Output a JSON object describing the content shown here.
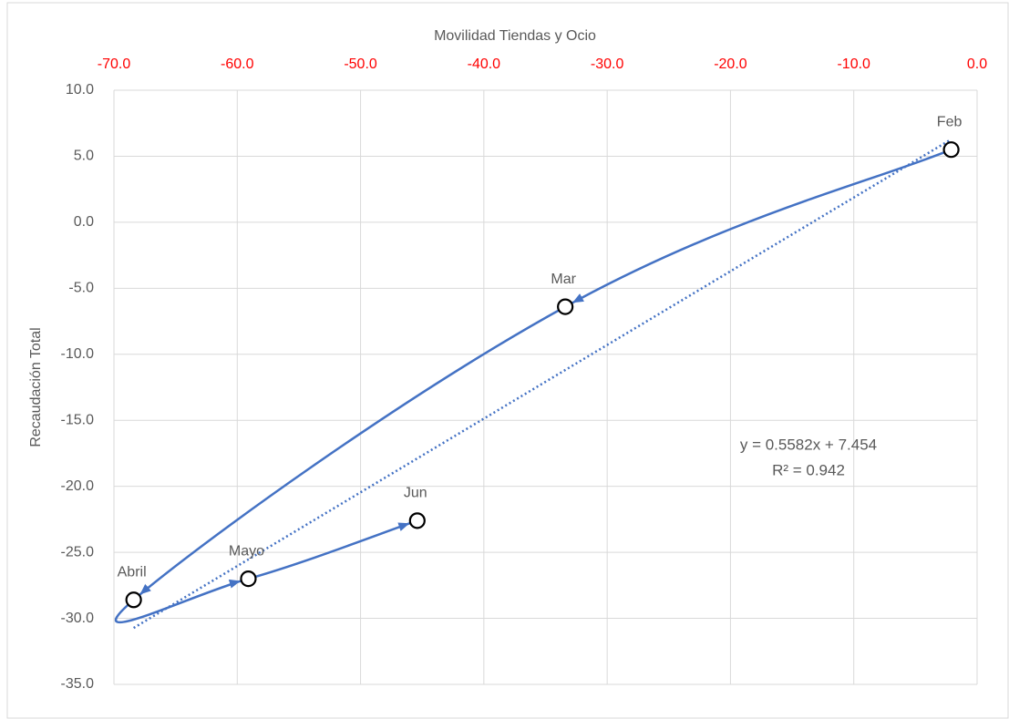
{
  "chart_data": {
    "type": "scatter",
    "x_label": "Movilidad Tiendas y Ocio",
    "y_label": "Recaudación Total",
    "series": [
      {
        "color": "#4472c4",
        "point_labels": [
          "Feb",
          "Mar",
          "Abril",
          "Mayo",
          "Jun"
        ],
        "x": [
          -2.1,
          -33.4,
          -68.4,
          -59.1,
          -45.4
        ],
        "values": [
          5.5,
          -6.4,
          -28.6,
          -27.0,
          -22.6
        ]
      }
    ],
    "trendline": {
      "slope": 0.5582,
      "intercept": 7.454,
      "color": "#4472c4",
      "equation": "y = 0.5582x + 7.454",
      "r2": "R² = 0.942"
    },
    "xlim": [
      -70,
      0
    ],
    "xticks": [
      {
        "value": -70,
        "label": "-70.0"
      },
      {
        "value": -60,
        "label": "-60.0"
      },
      {
        "value": -50,
        "label": "-50.0"
      },
      {
        "value": -40,
        "label": "-40.0"
      },
      {
        "value": -30,
        "label": "-30.0"
      },
      {
        "value": -20,
        "label": "-20.0"
      },
      {
        "value": -10,
        "label": "-10.0"
      },
      {
        "value": 0,
        "label": "0.0"
      }
    ],
    "ylim": [
      -35,
      10
    ],
    "yticks": [
      {
        "value": -35,
        "label": "-35.0"
      },
      {
        "value": -30,
        "label": "-30.0"
      },
      {
        "value": -25,
        "label": "-25.0"
      },
      {
        "value": -20,
        "label": "-20.0"
      },
      {
        "value": -15,
        "label": "-15.0"
      },
      {
        "value": -10,
        "label": "-10.0"
      },
      {
        "value": -5,
        "label": "-5.0"
      },
      {
        "value": 0,
        "label": "0.0"
      },
      {
        "value": 5,
        "label": "5.0"
      },
      {
        "value": 10,
        "label": "10.0"
      }
    ],
    "xtick_color": "#ff0000",
    "grid": true
  }
}
